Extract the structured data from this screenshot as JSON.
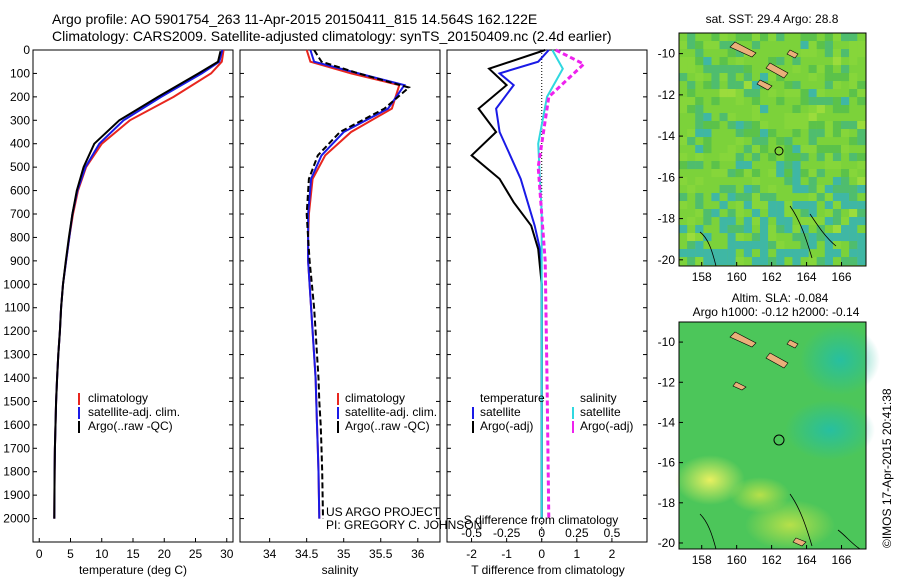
{
  "header": {
    "line1": "Argo profile: AO 5901754_263 11-Apr-2015 20150411_815 14.564S 162.122E",
    "line2": "Climatology: CARS2009. Satellite-adjusted climatology: synTS_20150409.nc (2.4d earlier)"
  },
  "colors": {
    "climatology": "#e8261e",
    "satellite": "#1a1ae6",
    "argo": "#000000",
    "salinity_satellite": "#30d8e0",
    "salinity_argo": "#ee22ee"
  },
  "depth_axis": {
    "ticks": [
      "0",
      "100",
      "200",
      "300",
      "400",
      "500",
      "600",
      "700",
      "800",
      "900",
      "1000",
      "1100",
      "1200",
      "1300",
      "1400",
      "1500",
      "1600",
      "1700",
      "1800",
      "1900",
      "2000"
    ]
  },
  "legend": {
    "climatology": "climatology",
    "satellite_adj": "satellite-adj. clim.",
    "argo_raw": "Argo(..raw -QC)",
    "temperature": "temperature",
    "salinity": "salinity",
    "satellite": "satellite",
    "argo_adj": "Argo(-adj)"
  },
  "project": {
    "line1": "US ARGO PROJECT",
    "line2": "PI: GREGORY C. JOHNSON"
  },
  "maps": {
    "sst_title": "sat. SST: 29.4 Argo: 28.8",
    "sla_title1": "Altim. SLA: -0.084",
    "sla_title2": "Argo h1000: -0.12 h2000: -0.14",
    "lat_ticks": [
      "-10",
      "-12",
      "-14",
      "-16",
      "-18",
      "-20"
    ],
    "lon_ticks": [
      "158",
      "160",
      "162",
      "164",
      "166"
    ],
    "float_position": {
      "lat": -14.564,
      "lon": 162.122
    },
    "credit": "©IMOS 17-Apr-2015 20:41:38"
  },
  "chart_data": [
    {
      "type": "line",
      "xlabel": "temperature (deg C)",
      "ylabel": "",
      "xlim": [
        -1,
        31
      ],
      "ylim": [
        2100,
        0
      ],
      "xticks": [
        0,
        5,
        10,
        15,
        20,
        25,
        30
      ],
      "legend": [
        "climatology",
        "satellite-adj. clim.",
        "Argo(..raw -QC)"
      ],
      "series": [
        {
          "name": "climatology",
          "x": [
            29.5,
            29.2,
            27.5,
            21.5,
            14.5,
            10.0,
            7.5,
            6.2,
            5.4,
            4.8,
            4.3,
            3.8,
            3.5,
            3.3,
            3.05,
            2.85,
            2.7,
            2.6,
            2.5,
            2.45,
            2.4
          ],
          "y": [
            0,
            50,
            100,
            200,
            300,
            400,
            500,
            600,
            700,
            800,
            900,
            1000,
            1100,
            1200,
            1300,
            1400,
            1500,
            1600,
            1700,
            1800,
            2000
          ]
        },
        {
          "name": "satellite-adj. clim.",
          "x": [
            29.3,
            28.8,
            26.0,
            19.5,
            13.5,
            9.6,
            7.4,
            6.1,
            5.3,
            4.8,
            4.3,
            3.8,
            3.5,
            3.3,
            3.05,
            2.85,
            2.7,
            2.6,
            2.5,
            2.45,
            2.4
          ],
          "y": [
            0,
            50,
            100,
            200,
            300,
            400,
            500,
            600,
            700,
            800,
            900,
            1000,
            1100,
            1200,
            1300,
            1400,
            1500,
            1600,
            1700,
            1800,
            2000
          ]
        },
        {
          "name": "Argo(..raw -QC)",
          "x": [
            29.0,
            28.6,
            25.5,
            19.0,
            12.8,
            8.8,
            7.1,
            6.0,
            5.3,
            4.75,
            4.25,
            3.8,
            3.5,
            3.3,
            3.05,
            2.85,
            2.7,
            2.6,
            2.5,
            2.45,
            2.4
          ],
          "y": [
            5,
            50,
            100,
            200,
            300,
            400,
            500,
            600,
            700,
            800,
            900,
            1000,
            1100,
            1200,
            1300,
            1400,
            1500,
            1600,
            1700,
            1800,
            2000
          ]
        }
      ]
    },
    {
      "type": "line",
      "xlabel": "salinity",
      "xlim": [
        33.6,
        36.3
      ],
      "ylim": [
        2100,
        0
      ],
      "xticks": [
        34,
        34.5,
        35,
        35.5,
        36
      ],
      "legend": [
        "climatology",
        "satellite-adj. clim.",
        "Argo(..raw -QC)"
      ],
      "series": [
        {
          "name": "climatology",
          "x": [
            34.5,
            34.55,
            35.1,
            35.75,
            35.65,
            35.1,
            34.75,
            34.58,
            34.53,
            34.52,
            34.52,
            34.54,
            34.56,
            34.58,
            34.6,
            34.62,
            34.63,
            34.64,
            34.65,
            34.66,
            34.67
          ],
          "y": [
            0,
            50,
            100,
            150,
            250,
            350,
            450,
            550,
            700,
            800,
            900,
            1000,
            1100,
            1200,
            1300,
            1400,
            1500,
            1600,
            1700,
            1800,
            2000
          ]
        },
        {
          "name": "satellite-adj. clim.",
          "x": [
            34.55,
            34.6,
            35.2,
            35.82,
            35.6,
            35.0,
            34.7,
            34.56,
            34.52,
            34.52,
            34.52,
            34.54,
            34.56,
            34.58,
            34.6,
            34.62,
            34.63,
            34.64,
            34.65,
            34.66,
            34.67
          ],
          "y": [
            0,
            50,
            100,
            150,
            250,
            350,
            450,
            550,
            700,
            800,
            900,
            1000,
            1100,
            1200,
            1300,
            1400,
            1500,
            1600,
            1700,
            1800,
            2000
          ]
        },
        {
          "name": "Argo(..raw -QC)",
          "x": [
            34.6,
            34.7,
            35.2,
            35.88,
            35.55,
            34.95,
            34.65,
            34.53,
            34.5,
            34.52,
            34.54,
            34.57,
            34.6,
            34.62,
            34.64,
            34.66,
            34.67,
            34.69,
            34.7,
            34.71,
            34.72
          ],
          "y": [
            0,
            50,
            100,
            160,
            250,
            350,
            450,
            550,
            700,
            800,
            900,
            1000,
            1100,
            1200,
            1300,
            1400,
            1500,
            1600,
            1700,
            1800,
            2000
          ]
        }
      ]
    },
    {
      "type": "line",
      "xlabel": "T difference from climatology",
      "xlabel_top": "S difference from climatology",
      "xlim": [
        -2.7,
        3.0
      ],
      "ylim": [
        2100,
        0
      ],
      "xticks_T": [
        -2,
        -1,
        0,
        1,
        2
      ],
      "xticks_S": [
        -0.5,
        -0.25,
        0,
        0.25,
        0.5
      ],
      "legend": [
        "temperature satellite",
        "temperature Argo(-adj)",
        "salinity satellite",
        "salinity Argo(-adj)"
      ],
      "series": [
        {
          "name": "satellite",
          "x": [
            0.2,
            -0.1,
            -1.2,
            -0.8,
            -1.3,
            -1.2,
            -0.9,
            -0.6,
            -0.4,
            -0.2,
            -0.05,
            0,
            0,
            0
          ],
          "y": [
            0,
            50,
            100,
            150,
            250,
            350,
            450,
            550,
            650,
            750,
            850,
            1000,
            1500,
            2000
          ]
        },
        {
          "name": "Argo(-adj)",
          "x": [
            0.1,
            -1.5,
            -1.0,
            -1.8,
            -1.3,
            -2.0,
            -1.2,
            -0.8,
            -0.3,
            -0.1,
            0,
            0
          ],
          "y": [
            0,
            80,
            150,
            250,
            350,
            450,
            550,
            650,
            750,
            850,
            1000,
            2000
          ]
        },
        {
          "name": "satellite",
          "x": [
            0.3,
            0.6,
            0.15,
            -0.1,
            0,
            0,
            0
          ],
          "y": [
            0,
            80,
            200,
            400,
            700,
            1200,
            2000
          ]
        },
        {
          "name": "Argo(-adj)",
          "x": [
            0.4,
            1.2,
            0.2,
            -0.1,
            0.1,
            0.15,
            0.2
          ],
          "y": [
            0,
            60,
            200,
            500,
            900,
            1400,
            2000
          ]
        }
      ]
    }
  ]
}
